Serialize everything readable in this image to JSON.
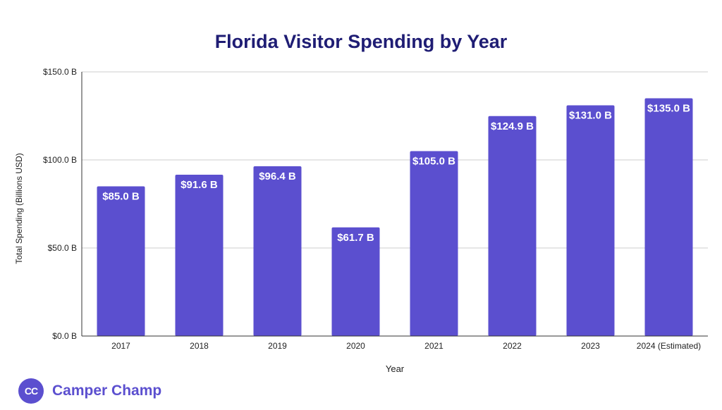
{
  "chart_data": {
    "type": "bar",
    "title": "Florida Visitor Spending by Year",
    "xlabel": "Year",
    "ylabel": "Total Spending (Billions USD)",
    "categories": [
      "2017",
      "2018",
      "2019",
      "2020",
      "2021",
      "2022",
      "2023",
      "2024 (Estimated)"
    ],
    "values": [
      85.0,
      91.6,
      96.4,
      61.7,
      105.0,
      124.9,
      131.0,
      135.0
    ],
    "data_labels": [
      "$85.0 B",
      "$91.6 B",
      "$96.4 B",
      "$61.7 B",
      "$105.0 B",
      "$124.9 B",
      "$131.0 B",
      "$135.0 B"
    ],
    "ylim": [
      0,
      150
    ],
    "yticks": [
      0,
      50,
      100,
      150
    ],
    "ytick_labels": [
      "$0.0 B",
      "$50.0 B",
      "$100.0 B",
      "$150.0 B"
    ],
    "grid": true,
    "bar_color": "#5b4fcf",
    "title_color": "#1f1d74"
  },
  "brand": {
    "logo_text": "CC",
    "name": "Camper Champ",
    "color": "#5b4fcf"
  }
}
